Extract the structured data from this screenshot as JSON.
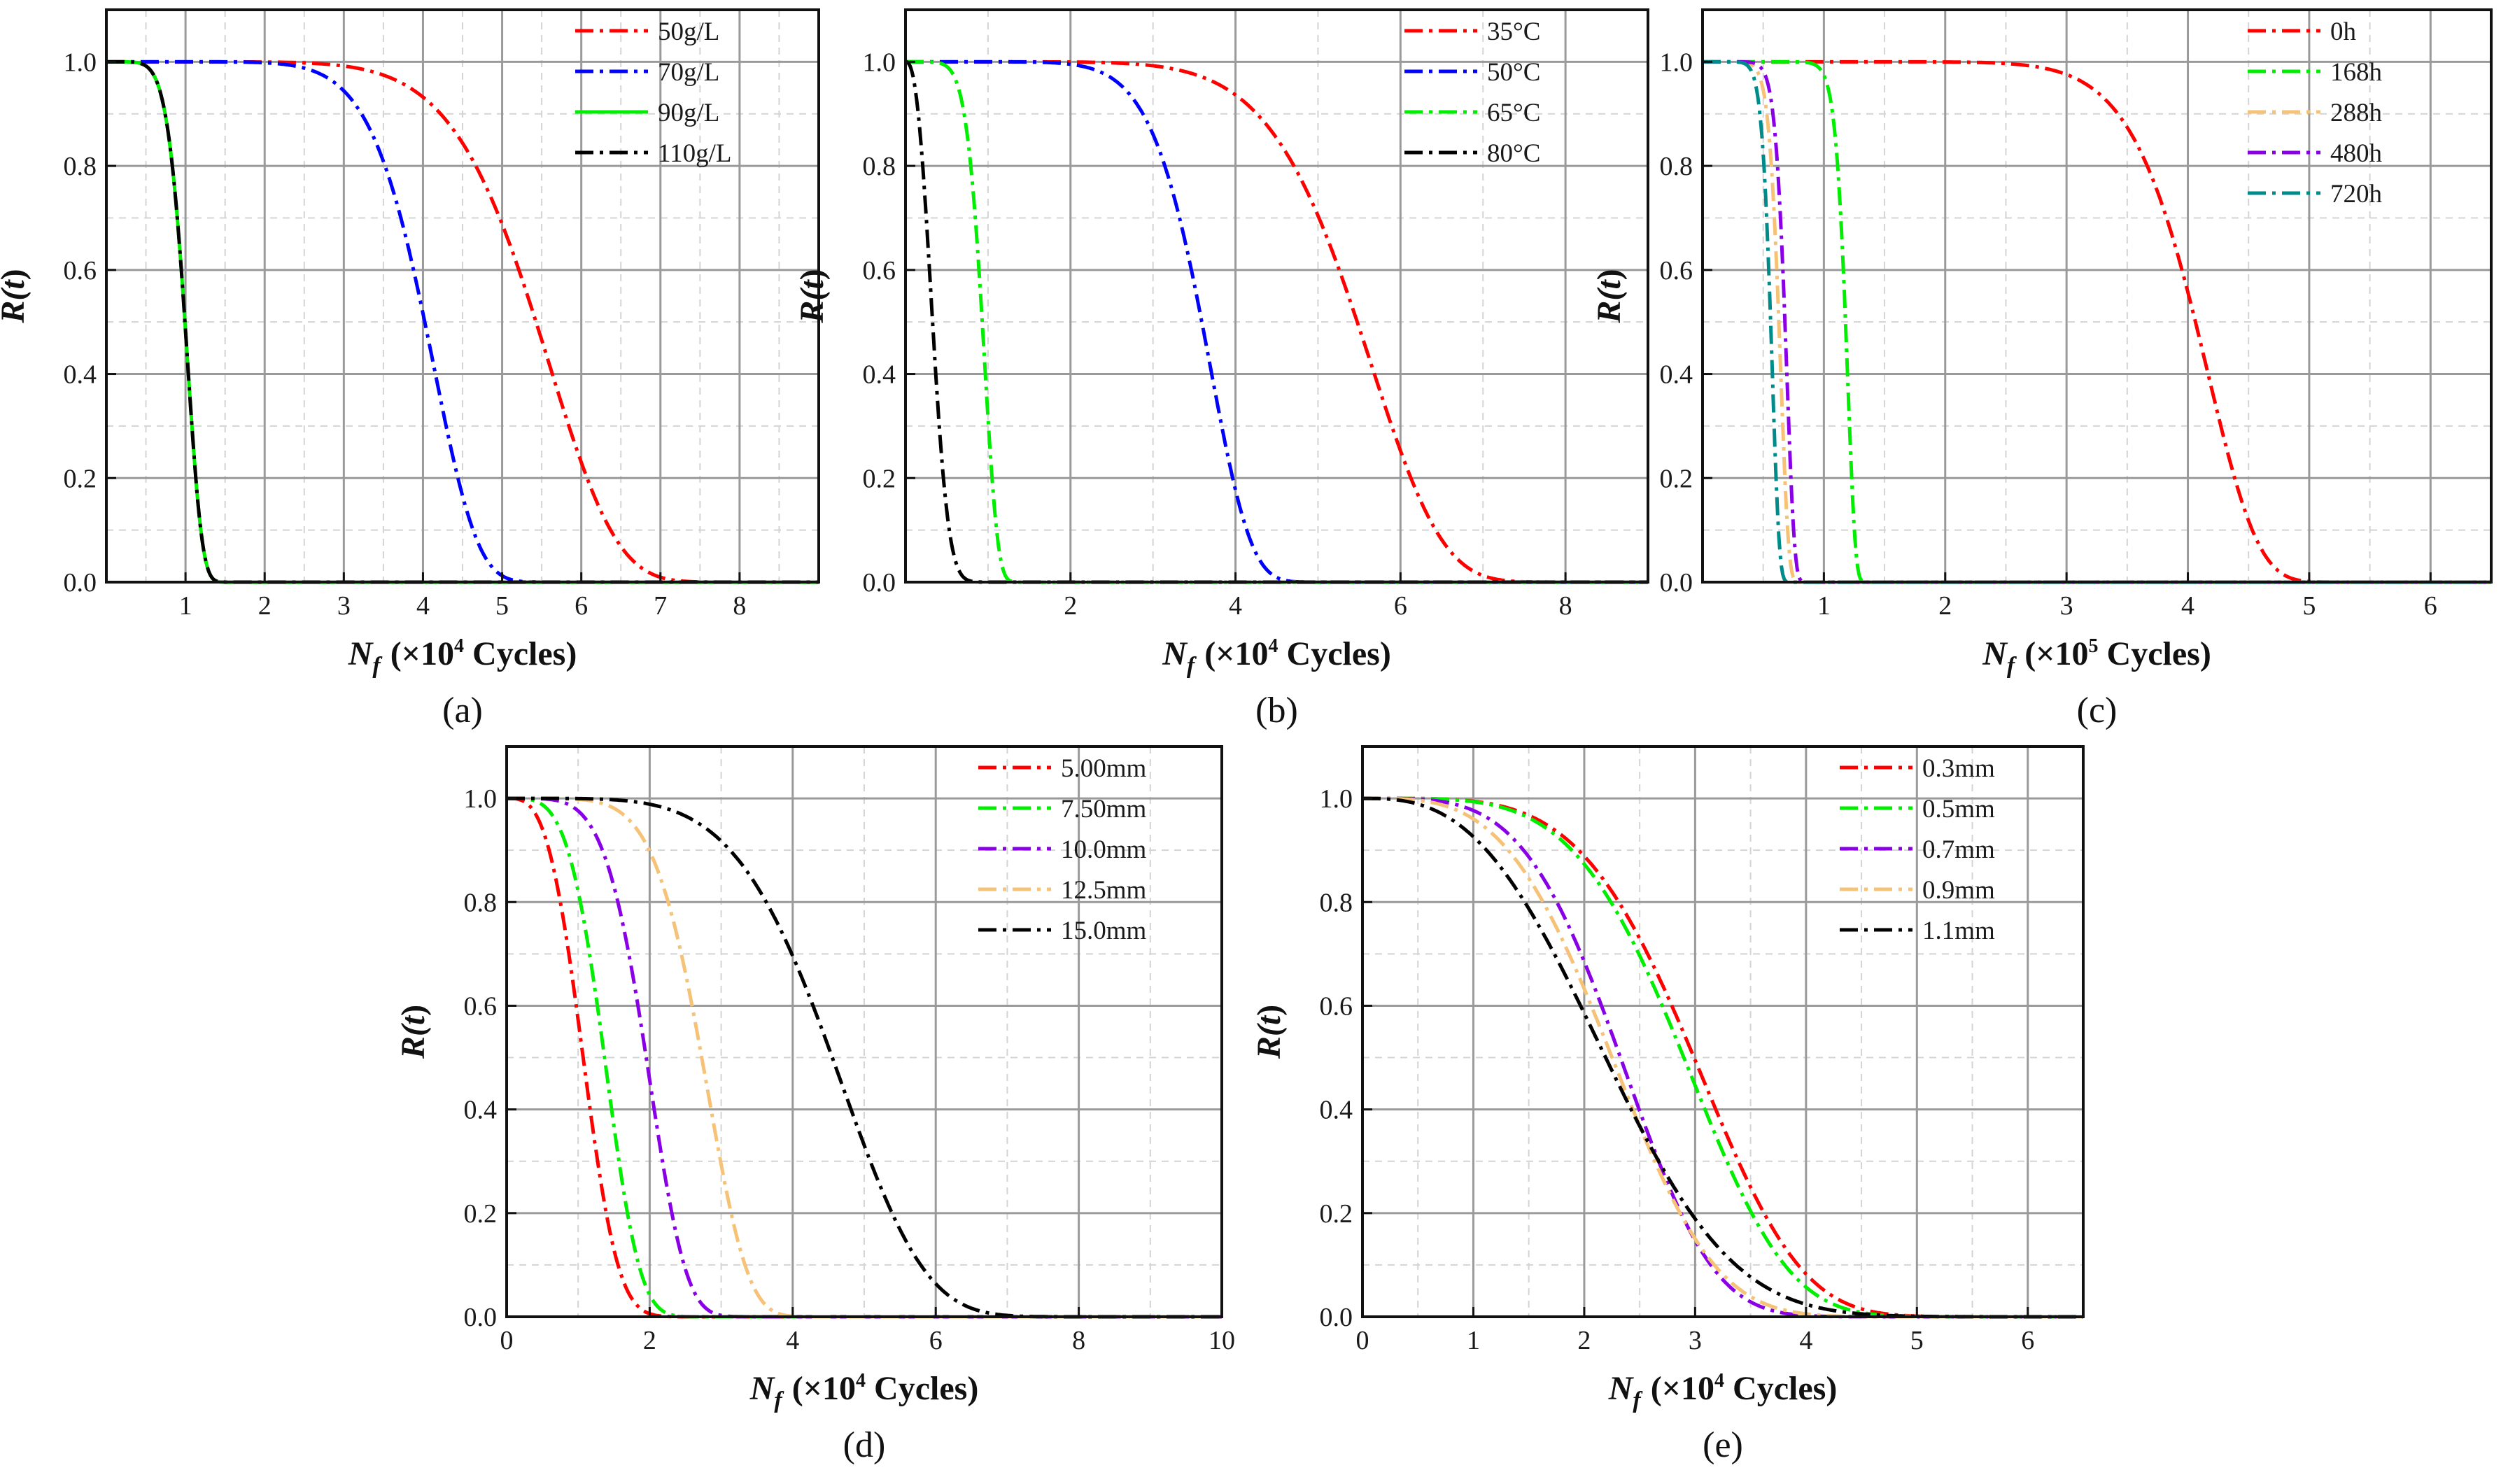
{
  "chart_data": [
    {
      "id": "a",
      "type": "line",
      "caption": "(a)",
      "xlabel": {
        "main": "N",
        "sub": "f",
        "text1": "(×10",
        "sup": "4",
        "text2": " Cycles)"
      },
      "ylabel": {
        "R": "R(",
        "t": "t",
        "close": ")"
      },
      "xlim": [
        0,
        9
      ],
      "ylim": [
        0,
        1.1
      ],
      "xticks": [
        1,
        2,
        3,
        4,
        5,
        6,
        7,
        8
      ],
      "yticks": [
        0.0,
        0.2,
        0.4,
        0.6,
        0.8,
        1.0
      ],
      "ytick_labels": [
        "0.0",
        "0.2",
        "0.4",
        "0.6",
        "0.8",
        "1.0"
      ],
      "grid": true,
      "legend_position": "top-right",
      "series": [
        {
          "name": "50g/L",
          "color": "#ff0000",
          "dash": "dashdot",
          "weibull": {
            "scale": 5.7,
            "shape": 7.5
          }
        },
        {
          "name": "70g/L",
          "color": "#0000ff",
          "dash": "dashdot",
          "weibull": {
            "scale": 4.2,
            "shape": 8.5
          }
        },
        {
          "name": "90g/L",
          "color": "#00ee00",
          "dash": "solid",
          "weibull": {
            "scale": 1.05,
            "shape": 6.5
          }
        },
        {
          "name": "110g/L",
          "color": "#000000",
          "dash": "dashdot",
          "weibull": {
            "scale": 1.05,
            "shape": 6.5
          }
        }
      ]
    },
    {
      "id": "b",
      "type": "line",
      "caption": "(b)",
      "xlabel": {
        "main": "N",
        "sub": "f",
        "text1": "(×10",
        "sup": "4",
        "text2": " Cycles)"
      },
      "ylabel": {
        "R": "R(",
        "t": "t",
        "close": ")"
      },
      "xlim": [
        0,
        9
      ],
      "ylim": [
        0,
        1.1
      ],
      "xticks": [
        2,
        4,
        6,
        8
      ],
      "yticks": [
        0.0,
        0.2,
        0.4,
        0.6,
        0.8,
        1.0
      ],
      "ytick_labels": [
        "0.0",
        "0.2",
        "0.4",
        "0.6",
        "0.8",
        "1.0"
      ],
      "grid": true,
      "legend_position": "top-right",
      "series": [
        {
          "name": "35°C",
          "color": "#ff0000",
          "dash": "dashdot",
          "weibull": {
            "scale": 5.75,
            "shape": 7.5
          }
        },
        {
          "name": "50°C",
          "color": "#0000ff",
          "dash": "dashdot",
          "weibull": {
            "scale": 3.75,
            "shape": 8.5
          }
        },
        {
          "name": "65°C",
          "color": "#00ee00",
          "dash": "dashdot",
          "weibull": {
            "scale": 0.98,
            "shape": 7
          }
        },
        {
          "name": "80°C",
          "color": "#000000",
          "dash": "dashdot",
          "weibull": {
            "scale": 0.38,
            "shape": 2.5
          }
        }
      ]
    },
    {
      "id": "c",
      "type": "line",
      "caption": "(c)",
      "xlabel": {
        "main": "N",
        "sub": "f",
        "text1": "(×10",
        "sup": "5",
        "text2": " Cycles)"
      },
      "ylabel": {
        "R": "R(",
        "t": "t",
        "close": ")"
      },
      "xlim": [
        0,
        6.5
      ],
      "ylim": [
        0,
        1.1
      ],
      "xticks": [
        1,
        2,
        3,
        4,
        5,
        6
      ],
      "yticks": [
        0.0,
        0.2,
        0.4,
        0.6,
        0.8,
        1.0
      ],
      "ytick_labels": [
        "0.0",
        "0.2",
        "0.4",
        "0.6",
        "0.8",
        "1.0"
      ],
      "grid": true,
      "legend_position": "top-right",
      "series": [
        {
          "name": "0h",
          "color": "#ff0000",
          "dash": "dashdot",
          "weibull": {
            "scale": 4.2,
            "shape": 11
          }
        },
        {
          "name": "168h",
          "color": "#00ee00",
          "dash": "dashdot",
          "weibull": {
            "scale": 1.2,
            "shape": 20
          }
        },
        {
          "name": "288h",
          "color": "#f5c277",
          "dash": "dashdot",
          "weibull": {
            "scale": 0.65,
            "shape": 11
          }
        },
        {
          "name": "480h",
          "color": "#8a00e6",
          "dash": "dashdot",
          "weibull": {
            "scale": 0.7,
            "shape": 12
          }
        },
        {
          "name": "720h",
          "color": "#008b8b",
          "dash": "dashdot",
          "weibull": {
            "scale": 0.58,
            "shape": 11
          }
        }
      ]
    },
    {
      "id": "d",
      "type": "line",
      "caption": "(d)",
      "xlabel": {
        "main": "N",
        "sub": "f",
        "text1": "(×10",
        "sup": "4",
        "text2": " Cycles)"
      },
      "ylabel": {
        "R": "R(",
        "t": "t",
        "close": ")"
      },
      "xlim": [
        0,
        10
      ],
      "ylim": [
        0,
        1.1
      ],
      "xticks": [
        0,
        2,
        4,
        6,
        8,
        10
      ],
      "yticks": [
        0.0,
        0.2,
        0.4,
        0.6,
        0.8,
        1.0
      ],
      "ytick_labels": [
        "0.0",
        "0.2",
        "0.4",
        "0.6",
        "0.8",
        "1.0"
      ],
      "grid": true,
      "legend_position": "top-right",
      "series": [
        {
          "name": "5.00mm",
          "color": "#ff0000",
          "dash": "dashdot",
          "weibull": {
            "scale": 1.2,
            "shape": 3.2
          }
        },
        {
          "name": "7.50mm",
          "color": "#00ee00",
          "dash": "dashdot",
          "weibull": {
            "scale": 1.5,
            "shape": 4.0
          }
        },
        {
          "name": "10.0mm",
          "color": "#8a00e6",
          "dash": "dashdot",
          "weibull": {
            "scale": 2.1,
            "shape": 5.0
          }
        },
        {
          "name": "12.5mm",
          "color": "#f5c277",
          "dash": "dashdot",
          "weibull": {
            "scale": 2.9,
            "shape": 6.0
          }
        },
        {
          "name": "15.0mm",
          "color": "#000000",
          "dash": "dashdot",
          "weibull": {
            "scale": 4.9,
            "shape": 5.0
          }
        }
      ]
    },
    {
      "id": "e",
      "type": "line",
      "caption": "(e)",
      "xlabel": {
        "main": "N",
        "sub": "f",
        "text1": "(×10",
        "sup": "4",
        "text2": " Cycles)"
      },
      "ylabel": {
        "R": "R(",
        "t": "t",
        "close": ")"
      },
      "xlim": [
        0,
        6.5
      ],
      "ylim": [
        0,
        1.1
      ],
      "xticks": [
        0,
        1,
        2,
        3,
        4,
        5,
        6
      ],
      "yticks": [
        0.0,
        0.2,
        0.4,
        0.6,
        0.8,
        1.0
      ],
      "ytick_labels": [
        "0.0",
        "0.2",
        "0.4",
        "0.6",
        "0.8",
        "1.0"
      ],
      "grid": true,
      "legend_position": "top-right",
      "series": [
        {
          "name": "0.3mm",
          "color": "#ff0000",
          "dash": "dashdot",
          "weibull": {
            "scale": 3.25,
            "shape": 4.4
          }
        },
        {
          "name": "0.5mm",
          "color": "#00ee00",
          "dash": "dashdot",
          "weibull": {
            "scale": 3.15,
            "shape": 4.4
          }
        },
        {
          "name": "0.7mm",
          "color": "#8a00e6",
          "dash": "dashdot",
          "weibull": {
            "scale": 2.55,
            "shape": 4.0
          }
        },
        {
          "name": "0.9mm",
          "color": "#f5c277",
          "dash": "dashdot",
          "weibull": {
            "scale": 2.5,
            "shape": 3.5
          }
        },
        {
          "name": "1.1mm",
          "color": "#000000",
          "dash": "dashdot",
          "weibull": {
            "scale": 2.5,
            "shape": 2.8
          }
        }
      ]
    }
  ]
}
